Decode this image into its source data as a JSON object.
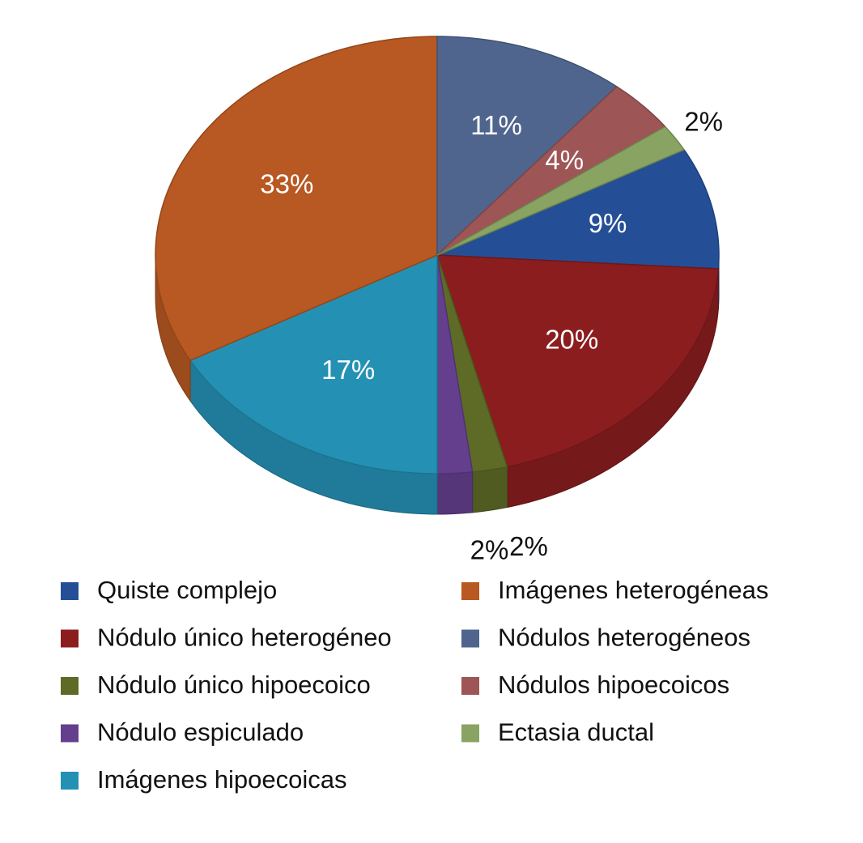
{
  "chart_data": {
    "type": "pie",
    "series": [
      {
        "name": "Quiste complejo",
        "color": "#244f96",
        "values": [
          9
        ],
        "value_labels": [
          "9%"
        ]
      },
      {
        "name": "Nódulo único heterogéneo",
        "color": "#8b1d1f",
        "values": [
          20
        ],
        "value_labels": [
          "20%"
        ]
      },
      {
        "name": "Nódulo único hipoecoico",
        "color": "#5d6b26",
        "values": [
          2
        ],
        "value_labels": [
          "2%"
        ]
      },
      {
        "name": "Nódulo espiculado",
        "color": "#643f8e",
        "values": [
          2
        ],
        "value_labels": [
          "2%"
        ]
      },
      {
        "name": "Imágenes hipoecoicas",
        "color": "#2491b4",
        "values": [
          17
        ],
        "value_labels": [
          "17%"
        ]
      },
      {
        "name": "Imágenes heterogéneas",
        "color": "#b85822",
        "values": [
          33
        ],
        "value_labels": [
          "33%"
        ]
      },
      {
        "name": "Nódulos heterogéneos",
        "color": "#50658d",
        "values": [
          11
        ],
        "value_labels": [
          "11%"
        ]
      },
      {
        "name": "Nódulos hipoecoicos",
        "color": "#9e5556",
        "values": [
          4
        ],
        "value_labels": [
          "4%"
        ]
      },
      {
        "name": "Ectasia ductal",
        "color": "#89a462",
        "values": [
          2
        ],
        "value_labels": [
          "2%"
        ]
      }
    ],
    "legend": "bottom"
  }
}
